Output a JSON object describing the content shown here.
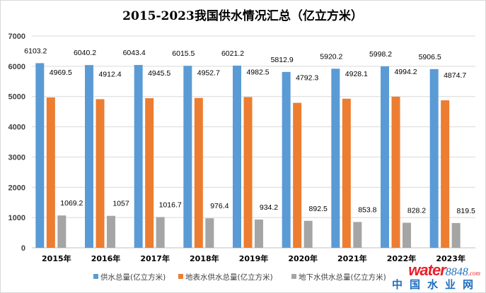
{
  "chart_data": {
    "type": "bar",
    "title": "2015-2023我国供水情况汇总（亿立方米）",
    "categories": [
      "2015年",
      "2016年",
      "2017年",
      "2018年",
      "2019年",
      "2020年",
      "2021年",
      "2022年",
      "2023年"
    ],
    "series": [
      {
        "name": "供水总量(亿立方米)",
        "color": "#5b9bd5",
        "values": [
          6103.2,
          6040.2,
          6043.4,
          6015.5,
          6021.2,
          5812.9,
          5920.2,
          5998.2,
          5906.5
        ]
      },
      {
        "name": "地表水供水总量(亿立方米)",
        "color": "#ed7d31",
        "values": [
          4969.5,
          4912.4,
          4945.5,
          4952.7,
          4982.5,
          4792.3,
          4928.1,
          4994.2,
          4874.7
        ]
      },
      {
        "name": "地下水供水总量(亿立方米)",
        "color": "#a5a5a5",
        "values": [
          1069.2,
          1057,
          1016.7,
          976.4,
          934.2,
          892.5,
          853.8,
          828.2,
          819.5
        ]
      }
    ],
    "value_labels": [
      [
        "6103.2",
        "6040.2",
        "6043.4",
        "6015.5",
        "6021.2",
        "5812.9",
        "5920.2",
        "5998.2",
        "5906.5"
      ],
      [
        "4969.5",
        "4912.4",
        "4945.5",
        "4952.7",
        "4982.5",
        "4792.3",
        "4928.1",
        "4994.2",
        "4874.7"
      ],
      [
        "1069.2",
        "1057",
        "1016.7",
        "976.4",
        "934.2",
        "892.5",
        "853.8",
        "828.2",
        "819.5"
      ]
    ],
    "yticks": [
      "0",
      "1000",
      "2000",
      "3000",
      "4000",
      "5000",
      "6000",
      "7000"
    ],
    "ylim": [
      0,
      7000
    ],
    "xlabel": "",
    "ylabel": "",
    "grid": true,
    "legend": "bottom"
  },
  "watermark": {
    "brand": "water",
    "brand_num": "8848",
    "brand_suffix": ".com",
    "cn": "中国水业网"
  }
}
